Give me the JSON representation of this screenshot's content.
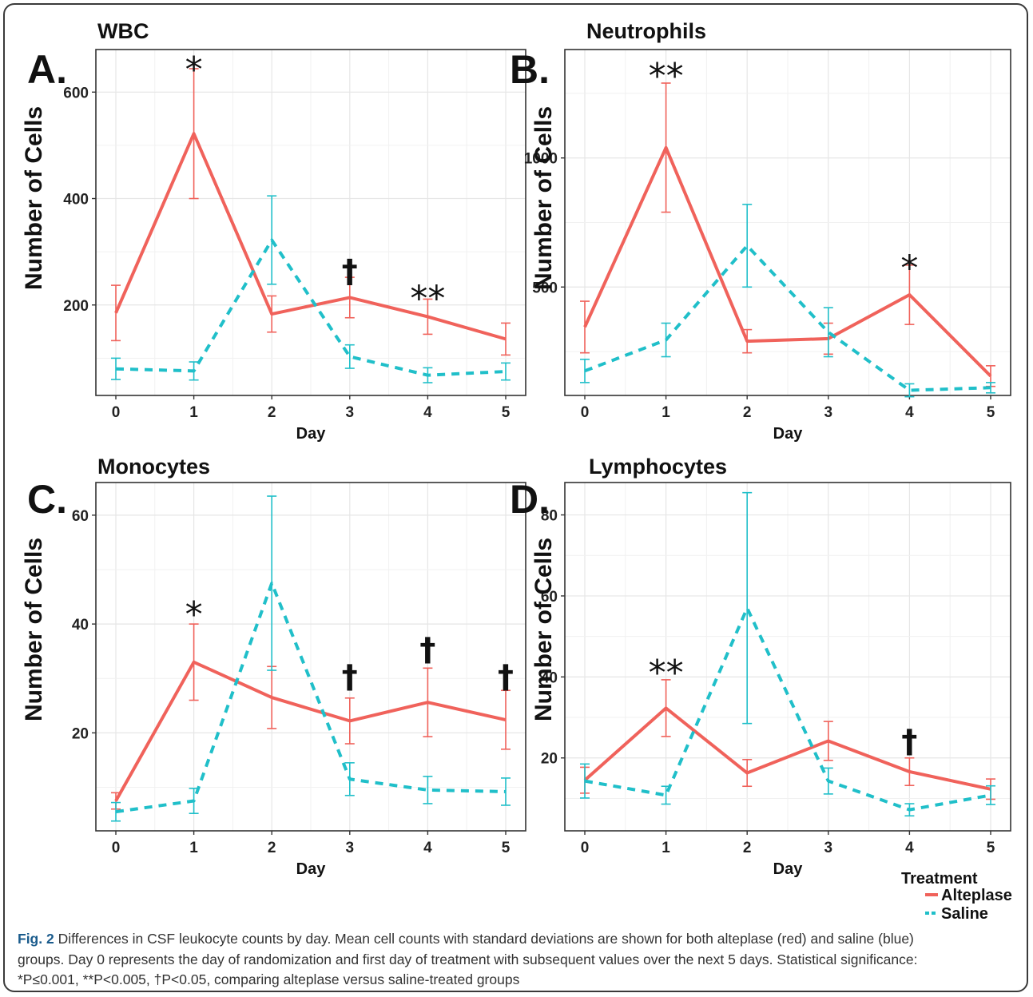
{
  "figure": {
    "caption_label": "Fig. 2",
    "caption_lines": [
      "Differences in CSF leukocyte counts by day. Mean cell counts with standard deviations are shown for both alteplase (red) and saline (blue)",
      "groups. Day 0 represents the day of randomization and first day of treatment with subsequent values over the next 5 days. Statistical significance:",
      "*P≤0.001, **P<0.005, †P<0.05, comparing alteplase versus saline-treated groups"
    ]
  },
  "legend": {
    "title": "Treatment",
    "placement": "bottom-right",
    "entries": [
      "Alteplase",
      "Saline"
    ]
  },
  "colors": {
    "alteplase": "#f0625b",
    "saline": "#20bfc9",
    "grid": "#e6e6e6",
    "axis": "#333333"
  },
  "chart_data": [
    {
      "panel": "A.",
      "type": "line",
      "title": "WBC",
      "xlabel": "Day",
      "ylabel": "Number of Cells",
      "x": [
        0,
        1,
        2,
        3,
        4,
        5
      ],
      "x_ticks": [
        "0",
        "1",
        "2",
        "3",
        "4",
        "5"
      ],
      "ylim": [
        30,
        680
      ],
      "y_ticks": [
        200,
        400,
        600
      ],
      "grid": true,
      "series": [
        {
          "name": "Alteplase",
          "style": "solid",
          "values": [
            185,
            522,
            183,
            214,
            178,
            136
          ],
          "error": [
            52,
            122,
            34,
            38,
            33,
            30
          ]
        },
        {
          "name": "Saline",
          "style": "dashed",
          "values": [
            80,
            76,
            322,
            103,
            68,
            75
          ],
          "error": [
            20,
            17,
            83,
            22,
            14,
            16
          ]
        }
      ],
      "annotations": [
        {
          "x": 1,
          "y": 665,
          "text": "*"
        },
        {
          "x": 3,
          "y": 270,
          "text": "†"
        },
        {
          "x": 4,
          "y": 235,
          "text": "**"
        }
      ]
    },
    {
      "panel": "B.",
      "type": "line",
      "title": "Neutrophils",
      "xlabel": "Day",
      "ylabel": "Number of Cells",
      "x": [
        0,
        1,
        2,
        3,
        4,
        5
      ],
      "x_ticks": [
        "0",
        "1",
        "2",
        "3",
        "4",
        "5"
      ],
      "ylim": [
        80,
        1420
      ],
      "y_ticks": [
        500,
        1000
      ],
      "grid": true,
      "series": [
        {
          "name": "Alteplase",
          "style": "solid",
          "values": [
            345,
            1040,
            290,
            300,
            470,
            155
          ],
          "error": [
            100,
            250,
            45,
            60,
            115,
            40
          ]
        },
        {
          "name": "Saline",
          "style": "dashed",
          "values": [
            175,
            295,
            660,
            325,
            100,
            110
          ],
          "error": [
            45,
            65,
            160,
            95,
            25,
            20
          ]
        }
      ],
      "annotations": [
        {
          "x": 1,
          "y": 1365,
          "text": "**"
        },
        {
          "x": 4,
          "y": 620,
          "text": "*"
        }
      ]
    },
    {
      "panel": "C.",
      "type": "line",
      "title": "Monocytes",
      "xlabel": "Day",
      "ylabel": "Number of Cells",
      "x": [
        0,
        1,
        2,
        3,
        4,
        5
      ],
      "x_ticks": [
        "0",
        "1",
        "2",
        "3",
        "4",
        "5"
      ],
      "ylim": [
        2,
        66
      ],
      "y_ticks": [
        20,
        40,
        60
      ],
      "grid": true,
      "series": [
        {
          "name": "Alteplase",
          "style": "solid",
          "values": [
            7.5,
            33,
            26.5,
            22.2,
            25.6,
            22.4
          ],
          "error": [
            1.5,
            7,
            5.7,
            4.2,
            6.3,
            5.4
          ]
        },
        {
          "name": "Saline",
          "style": "dashed",
          "values": [
            5.5,
            7.5,
            47.5,
            11.5,
            9.5,
            9.2
          ],
          "error": [
            1.7,
            2.3,
            16,
            3,
            2.5,
            2.5
          ]
        }
      ],
      "annotations": [
        {
          "x": 1,
          "y": 44,
          "text": "*"
        },
        {
          "x": 3,
          "y": 31,
          "text": "†"
        },
        {
          "x": 4,
          "y": 36,
          "text": "†"
        },
        {
          "x": 5,
          "y": 31,
          "text": "†"
        }
      ]
    },
    {
      "panel": "D.",
      "type": "line",
      "title": "Lymphocytes",
      "xlabel": "Day",
      "ylabel": "Number of Cells",
      "x": [
        0,
        1,
        2,
        3,
        4,
        5
      ],
      "x_ticks": [
        "0",
        "1",
        "2",
        "3",
        "4",
        "5"
      ],
      "ylim": [
        2,
        88
      ],
      "y_ticks": [
        20,
        40,
        60,
        80
      ],
      "grid": true,
      "series": [
        {
          "name": "Alteplase",
          "style": "solid",
          "values": [
            14.5,
            32.3,
            16.3,
            24.2,
            16.6,
            12.3
          ],
          "error": [
            3.2,
            7,
            3.3,
            4.8,
            3.4,
            2.5
          ]
        },
        {
          "name": "Saline",
          "style": "dashed",
          "values": [
            14.3,
            10.8,
            57,
            14.3,
            7.2,
            10.8
          ],
          "error": [
            4.2,
            2.2,
            28.5,
            3.2,
            1.5,
            2.3
          ]
        }
      ],
      "annotations": [
        {
          "x": 1,
          "y": 44,
          "text": "**"
        },
        {
          "x": 4,
          "y": 25,
          "text": "†"
        }
      ]
    }
  ]
}
